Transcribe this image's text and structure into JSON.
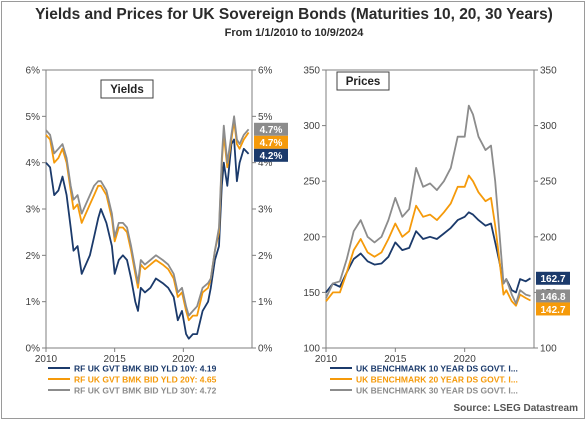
{
  "header": {
    "title": "Yields and Prices for UK Sovereign Bonds (Maturities 10, 20, 30 Years)",
    "subtitle": "From 1/1/2010 to 10/9/2024"
  },
  "source": "Source: LSEG Datastream",
  "colors": {
    "navy": "#1b3a6b",
    "orange": "#f59a0a",
    "gray": "#8c8c8c"
  },
  "chart_data": [
    {
      "type": "line",
      "panel_label": "Yields",
      "x_range": [
        2010,
        2025
      ],
      "xticks": [
        "2010",
        "2015",
        "2020"
      ],
      "ylim": [
        0,
        6
      ],
      "yticks_left": [
        "0%",
        "1%",
        "2%",
        "3%",
        "4%",
        "5%",
        "6%"
      ],
      "yticks_right": [
        "0%",
        "1%",
        "2%",
        "3%",
        "4%",
        "5%",
        "6%"
      ],
      "grid": false,
      "legend_position": "bottom",
      "series": [
        {
          "name": "RF UK GVT BMK BID YLD 10Y: 4.19",
          "color": "navy",
          "end_label": "4.2%",
          "x": [
            2010.0,
            2010.3,
            2010.6,
            2010.9,
            2011.2,
            2011.5,
            2011.8,
            2012.0,
            2012.3,
            2012.6,
            2012.9,
            2013.2,
            2013.5,
            2013.8,
            2014.0,
            2014.4,
            2014.8,
            2015.0,
            2015.3,
            2015.6,
            2015.9,
            2016.2,
            2016.5,
            2016.7,
            2016.9,
            2017.2,
            2017.6,
            2018.0,
            2018.5,
            2018.9,
            2019.3,
            2019.6,
            2019.9,
            2020.2,
            2020.4,
            2020.7,
            2021.0,
            2021.4,
            2021.8,
            2022.0,
            2022.3,
            2022.6,
            2022.8,
            2022.95,
            2023.2,
            2023.5,
            2023.7,
            2023.9,
            2024.1,
            2024.4,
            2024.75
          ],
          "y": [
            4.0,
            3.9,
            3.3,
            3.4,
            3.7,
            3.3,
            2.6,
            2.1,
            2.2,
            1.6,
            1.8,
            2.0,
            2.4,
            2.8,
            3.0,
            2.7,
            2.2,
            1.6,
            1.9,
            2.0,
            1.9,
            1.5,
            1.0,
            0.8,
            1.3,
            1.2,
            1.3,
            1.5,
            1.4,
            1.3,
            1.1,
            0.6,
            0.8,
            0.3,
            0.2,
            0.3,
            0.3,
            0.8,
            1.0,
            1.3,
            1.9,
            2.2,
            3.5,
            4.0,
            3.5,
            4.4,
            4.5,
            3.6,
            4.0,
            4.3,
            4.19
          ]
        },
        {
          "name": "RF UK GVT BMK BID YLD 20Y: 4.65",
          "color": "orange",
          "end_label": "4.7%",
          "x": [
            2010.0,
            2010.3,
            2010.6,
            2010.9,
            2011.2,
            2011.5,
            2011.8,
            2012.0,
            2012.3,
            2012.6,
            2012.9,
            2013.2,
            2013.5,
            2013.8,
            2014.0,
            2014.4,
            2014.8,
            2015.0,
            2015.3,
            2015.6,
            2015.9,
            2016.2,
            2016.5,
            2016.7,
            2016.9,
            2017.2,
            2017.6,
            2018.0,
            2018.5,
            2018.9,
            2019.3,
            2019.6,
            2019.9,
            2020.2,
            2020.4,
            2020.7,
            2021.0,
            2021.4,
            2021.8,
            2022.0,
            2022.3,
            2022.6,
            2022.8,
            2022.95,
            2023.2,
            2023.5,
            2023.7,
            2023.9,
            2024.1,
            2024.4,
            2024.75
          ],
          "y": [
            4.6,
            4.5,
            4.0,
            4.1,
            4.3,
            4.0,
            3.4,
            3.0,
            3.1,
            2.7,
            2.9,
            3.1,
            3.3,
            3.5,
            3.5,
            3.3,
            2.8,
            2.3,
            2.6,
            2.6,
            2.5,
            2.1,
            1.6,
            1.3,
            1.8,
            1.7,
            1.8,
            1.9,
            1.8,
            1.7,
            1.5,
            1.1,
            1.2,
            0.8,
            0.6,
            0.7,
            0.7,
            1.2,
            1.3,
            1.5,
            2.1,
            2.5,
            4.0,
            4.6,
            3.9,
            4.5,
            4.9,
            4.4,
            4.3,
            4.5,
            4.65
          ]
        },
        {
          "name": "RF UK GVT BMK BID YLD 30Y: 4.72",
          "color": "gray",
          "end_label": "4.7%",
          "x": [
            2010.0,
            2010.3,
            2010.6,
            2010.9,
            2011.2,
            2011.5,
            2011.8,
            2012.0,
            2012.3,
            2012.6,
            2012.9,
            2013.2,
            2013.5,
            2013.8,
            2014.0,
            2014.4,
            2014.8,
            2015.0,
            2015.3,
            2015.6,
            2015.9,
            2016.2,
            2016.5,
            2016.7,
            2016.9,
            2017.2,
            2017.6,
            2018.0,
            2018.5,
            2018.9,
            2019.3,
            2019.6,
            2019.9,
            2020.2,
            2020.4,
            2020.7,
            2021.0,
            2021.4,
            2021.8,
            2022.0,
            2022.3,
            2022.6,
            2022.8,
            2022.95,
            2023.2,
            2023.5,
            2023.7,
            2023.9,
            2024.1,
            2024.4,
            2024.75
          ],
          "y": [
            4.7,
            4.6,
            4.2,
            4.3,
            4.4,
            4.1,
            3.5,
            3.2,
            3.3,
            2.9,
            3.1,
            3.3,
            3.5,
            3.6,
            3.6,
            3.4,
            2.9,
            2.4,
            2.7,
            2.7,
            2.6,
            2.2,
            1.7,
            1.4,
            1.9,
            1.8,
            1.9,
            2.0,
            1.9,
            1.8,
            1.6,
            1.2,
            1.3,
            0.9,
            0.7,
            0.8,
            0.9,
            1.3,
            1.4,
            1.5,
            2.1,
            2.6,
            4.1,
            4.8,
            4.0,
            4.6,
            5.0,
            4.5,
            4.4,
            4.6,
            4.72
          ]
        }
      ]
    },
    {
      "type": "line",
      "panel_label": "Prices",
      "x_range": [
        2010,
        2025
      ],
      "xticks": [
        "2010",
        "2015",
        "2020"
      ],
      "ylim": [
        100,
        350
      ],
      "yticks_left": [
        "100",
        "150",
        "200",
        "250",
        "300",
        "350"
      ],
      "yticks_right": [
        "100",
        "150",
        "200",
        "250",
        "300",
        "350"
      ],
      "grid": false,
      "legend_position": "bottom",
      "series": [
        {
          "name": "UK BENCHMARK 10 YEAR DS GOVT. I...",
          "color": "navy",
          "end_label": "162.7",
          "x": [
            2010.0,
            2010.5,
            2011.0,
            2011.5,
            2012.0,
            2012.5,
            2013.0,
            2013.5,
            2014.0,
            2014.5,
            2015.0,
            2015.5,
            2016.0,
            2016.5,
            2017.0,
            2017.5,
            2018.0,
            2018.5,
            2019.0,
            2019.5,
            2020.0,
            2020.3,
            2020.6,
            2021.0,
            2021.5,
            2021.9,
            2022.2,
            2022.5,
            2022.8,
            2023.0,
            2023.4,
            2023.7,
            2024.0,
            2024.4,
            2024.75
          ],
          "y": [
            150,
            158,
            155,
            168,
            180,
            185,
            178,
            175,
            176,
            182,
            195,
            188,
            190,
            205,
            198,
            200,
            198,
            203,
            208,
            215,
            218,
            222,
            220,
            215,
            210,
            212,
            195,
            178,
            158,
            162,
            152,
            150,
            162,
            160,
            162.7
          ]
        },
        {
          "name": "UK BENCHMARK 20 YEAR DS GOVT. I...",
          "color": "orange",
          "end_label": "142.7",
          "x": [
            2010.0,
            2010.5,
            2011.0,
            2011.5,
            2012.0,
            2012.5,
            2013.0,
            2013.5,
            2014.0,
            2014.5,
            2015.0,
            2015.5,
            2016.0,
            2016.5,
            2017.0,
            2017.5,
            2018.0,
            2018.5,
            2019.0,
            2019.5,
            2020.0,
            2020.3,
            2020.6,
            2021.0,
            2021.5,
            2021.9,
            2022.2,
            2022.5,
            2022.8,
            2023.0,
            2023.4,
            2023.7,
            2024.0,
            2024.4,
            2024.75
          ],
          "y": [
            142,
            150,
            150,
            168,
            188,
            198,
            186,
            182,
            186,
            198,
            212,
            200,
            205,
            228,
            218,
            220,
            215,
            222,
            230,
            245,
            245,
            255,
            250,
            240,
            232,
            235,
            210,
            180,
            148,
            152,
            142,
            138,
            148,
            145,
            142.7
          ]
        },
        {
          "name": "UK BENCHMARK 30 YEAR DS GOVT. I...",
          "color": "gray",
          "end_label": "146.8",
          "x": [
            2010.0,
            2010.5,
            2011.0,
            2011.5,
            2012.0,
            2012.5,
            2013.0,
            2013.5,
            2014.0,
            2014.5,
            2015.0,
            2015.5,
            2016.0,
            2016.5,
            2017.0,
            2017.5,
            2018.0,
            2018.5,
            2019.0,
            2019.5,
            2020.0,
            2020.3,
            2020.6,
            2021.0,
            2021.5,
            2021.9,
            2022.2,
            2022.5,
            2022.8,
            2023.0,
            2023.4,
            2023.7,
            2024.0,
            2024.4,
            2024.75
          ],
          "y": [
            145,
            158,
            160,
            180,
            205,
            215,
            200,
            195,
            200,
            215,
            235,
            218,
            225,
            262,
            245,
            248,
            242,
            250,
            262,
            290,
            290,
            318,
            310,
            290,
            278,
            282,
            250,
            205,
            158,
            162,
            148,
            140,
            152,
            148,
            146.8
          ]
        }
      ]
    }
  ]
}
